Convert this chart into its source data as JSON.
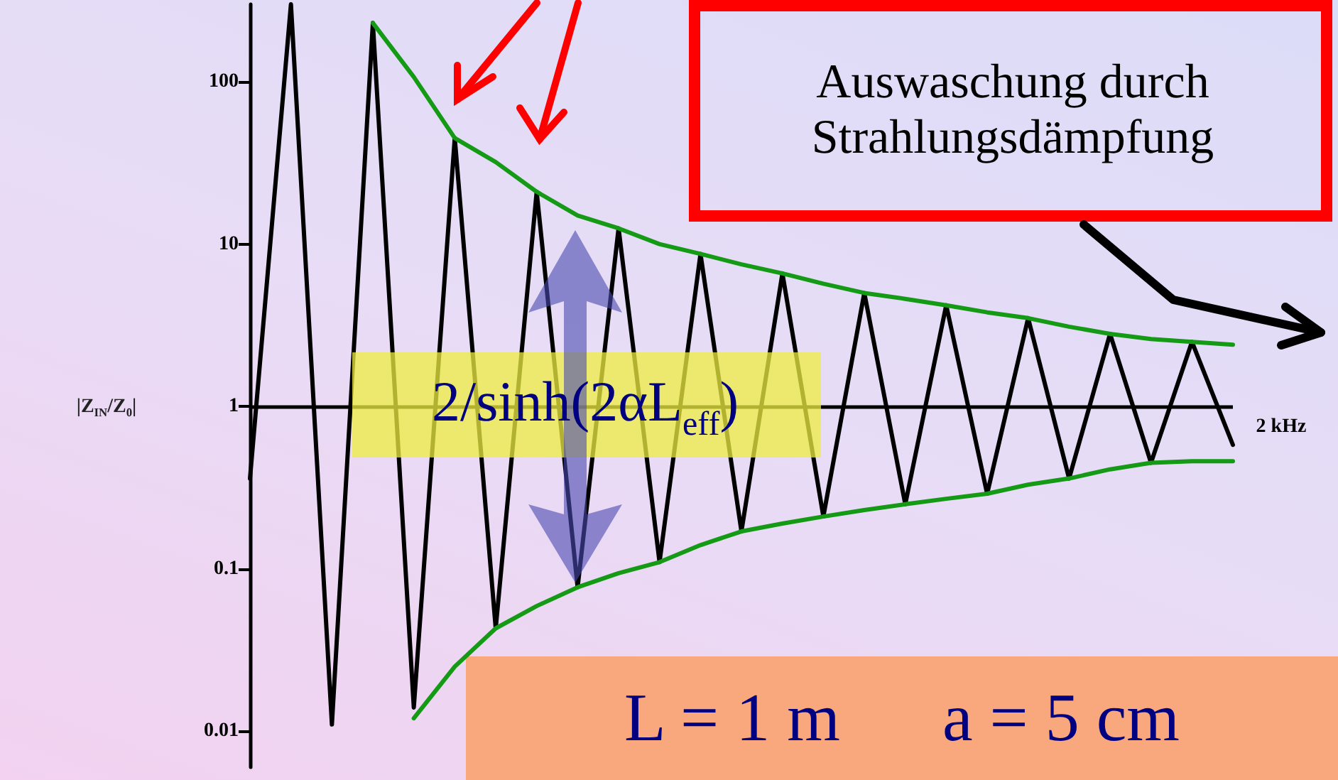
{
  "chart_data": {
    "type": "line",
    "ylabel": "|Z$_{IN}$/Z$_{0}$|",
    "categories": [
      null,
      null,
      null,
      null,
      null,
      null,
      null,
      null,
      null,
      null,
      null,
      null,
      null,
      null,
      null,
      null,
      null,
      null,
      null,
      null,
      null,
      null,
      null,
      null,
      null
    ],
    "series": [
      {
        "color": "#000000",
        "values": [
          0.36,
          300,
          0.011,
          230,
          0.014,
          45,
          0.043,
          21,
          0.077,
          12.5,
          0.11,
          8.7,
          0.17,
          6.6,
          0.21,
          5.0,
          0.25,
          4.2,
          0.29,
          3.5,
          0.36,
          2.8,
          0.45,
          2.5,
          0.58
        ]
      },
      {
        "color": "#149a14",
        "values": [
          null,
          null,
          null,
          230,
          107,
          45,
          32,
          21,
          15,
          12.5,
          10,
          8.7,
          7.5,
          6.6,
          5.7,
          5.0,
          4.6,
          4.2,
          3.8,
          3.5,
          3.1,
          2.8,
          2.6,
          2.5,
          2.4
        ]
      },
      {
        "color": "#149a14",
        "values": [
          null,
          null,
          null,
          null,
          0.012,
          0.025,
          0.043,
          0.059,
          0.077,
          0.094,
          0.11,
          0.14,
          0.17,
          0.19,
          0.21,
          0.23,
          0.25,
          0.27,
          0.29,
          0.33,
          0.36,
          0.41,
          0.45,
          0.46,
          0.46
        ]
      }
    ],
    "ylim": [
      0.006,
      300
    ],
    "yticks": [
      0.01,
      0.1,
      1,
      10,
      100
    ],
    "ref_lines": [
      {
        "axis": "y",
        "value": 1,
        "color": "#000000"
      }
    ],
    "log": "y",
    "marker": "none",
    "line_style": "solid",
    "annotations": [
      "Auswaschung durch Strahlungsdämpfung",
      "2/sinh(2αL$_{eff}$)",
      "L = 1 m      a = 5 cm",
      "2 kHz"
    ]
  }
}
